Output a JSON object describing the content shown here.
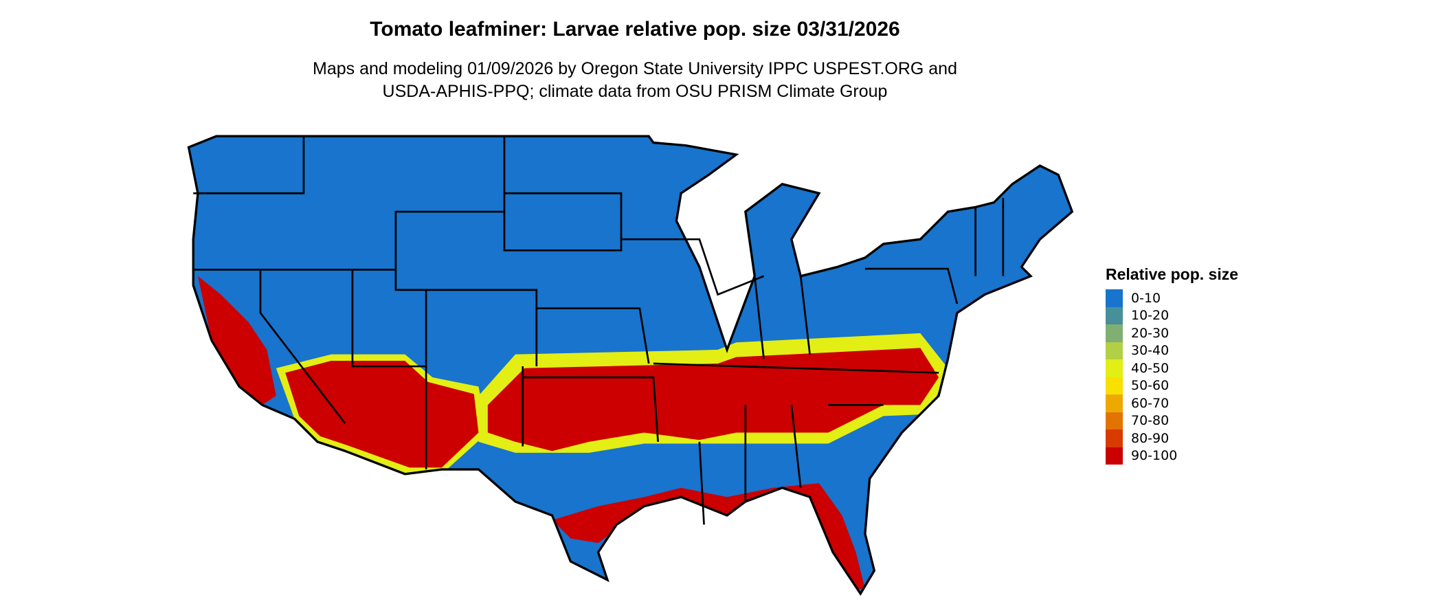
{
  "title": "Tomato leafminer: Larvae relative pop. size 03/31/2026",
  "subtitle_lines": [
    "Maps and modeling 01/09/2026 by Oregon State University IPPC USPEST.ORG and",
    "USDA-APHIS-PPQ; climate data from OSU PRISM Climate Group"
  ],
  "legend": {
    "title": "Relative pop. size",
    "items": [
      {
        "label": "0-10",
        "color": "#1874CD"
      },
      {
        "label": "10-20",
        "color": "#488F9C"
      },
      {
        "label": "20-30",
        "color": "#7FAF72"
      },
      {
        "label": "30-40",
        "color": "#B2CF45"
      },
      {
        "label": "40-50",
        "color": "#E3EE15"
      },
      {
        "label": "50-60",
        "color": "#F8E000"
      },
      {
        "label": "60-70",
        "color": "#EEA900"
      },
      {
        "label": "70-80",
        "color": "#E27300"
      },
      {
        "label": "80-90",
        "color": "#D93A00"
      },
      {
        "label": "90-100",
        "color": "#CC0000"
      }
    ]
  },
  "map": {
    "region": "Contiguous United States",
    "boundaries": "state borders"
  }
}
